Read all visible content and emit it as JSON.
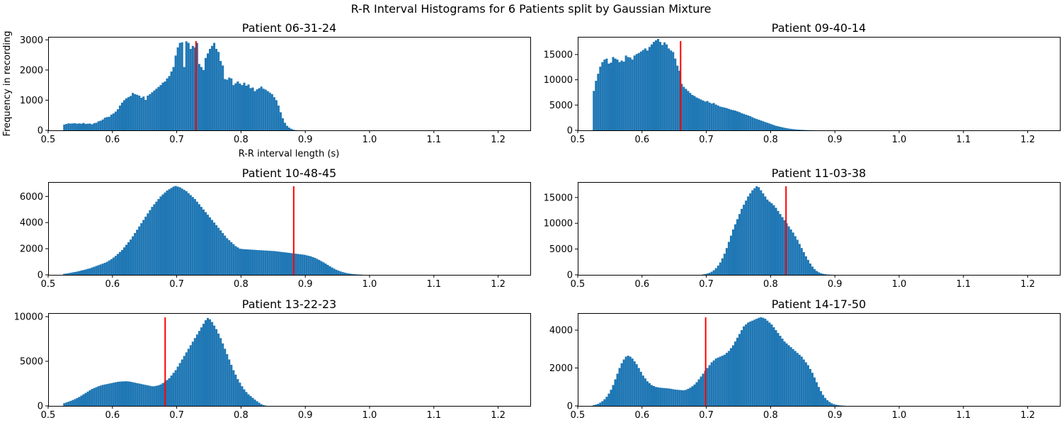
{
  "figure": {
    "suptitle": "R-R Interval Histograms for 6 Patients split by Gaussian Mixture",
    "ylabel": "Frequency in recording",
    "xlabel": "R-R interval length (s)"
  },
  "colors": {
    "bars": "#1f77b4",
    "split_line": "#ff0000"
  },
  "chart_data": [
    {
      "type": "bar",
      "title": "Patient 06-31-24",
      "xlabel": "R-R interval length (s)",
      "ylabel": "Frequency in recording",
      "xlim": [
        0.5,
        1.25
      ],
      "ylim": [
        0,
        3100
      ],
      "xticks": [
        0.5,
        0.6,
        0.7,
        0.8,
        0.9,
        1.0,
        1.1,
        1.2
      ],
      "yticks": [
        0,
        1000,
        2000,
        3000
      ],
      "split": 0.73,
      "bin_start": 0.5234,
      "bin_width": 0.003333,
      "values": [
        190,
        210,
        230,
        225,
        230,
        235,
        220,
        230,
        220,
        245,
        215,
        220,
        225,
        200,
        240,
        250,
        300,
        320,
        360,
        420,
        440,
        450,
        520,
        560,
        620,
        700,
        820,
        920,
        1000,
        1060,
        1100,
        1140,
        1240,
        1200,
        1180,
        1150,
        1080,
        1120,
        1010,
        1150,
        1200,
        1260,
        1320,
        1380,
        1440,
        1500,
        1580,
        1620,
        1720,
        1800,
        1950,
        2100,
        2480,
        2750,
        2900,
        2920,
        2100,
        2950,
        2900,
        2700,
        2800,
        2750,
        2900,
        2200,
        2100,
        2000,
        2400,
        2550,
        2700,
        2800,
        2900,
        2700,
        2600,
        2300,
        2150,
        1700,
        1680,
        1750,
        1720,
        1500,
        1560,
        1620,
        1550,
        1500,
        1580,
        1480,
        1520,
        1400,
        1420,
        1300,
        1360,
        1400,
        1450,
        1380,
        1350,
        1300,
        1250,
        1200,
        1100,
        1000,
        820,
        600,
        400,
        250,
        150,
        90,
        50,
        20,
        8
      ]
    },
    {
      "type": "bar",
      "title": "Patient 09-40-14",
      "xlim": [
        0.5,
        1.25
      ],
      "ylim": [
        0,
        18500
      ],
      "xticks": [
        0.5,
        0.6,
        0.7,
        0.8,
        0.9,
        1.0,
        1.1,
        1.2
      ],
      "yticks": [
        0,
        5000,
        10000,
        15000
      ],
      "split": 0.66,
      "bin_start": 0.5234,
      "bin_width": 0.003333,
      "values": [
        7800,
        9800,
        11200,
        12600,
        13500,
        14000,
        14200,
        13200,
        13400,
        14500,
        14200,
        14000,
        13500,
        13800,
        13600,
        14800,
        14500,
        14400,
        14000,
        14800,
        15100,
        15300,
        15600,
        15900,
        16200,
        15800,
        16500,
        17000,
        17500,
        17800,
        18100,
        17500,
        16900,
        17400,
        17000,
        16200,
        15800,
        15500,
        14200,
        12800,
        11800,
        9200,
        8600,
        8200,
        7800,
        7400,
        7000,
        6800,
        6500,
        6300,
        6100,
        5900,
        5700,
        5800,
        5500,
        5300,
        5400,
        5100,
        4900,
        4700,
        4600,
        4500,
        4400,
        4250,
        4100,
        4000,
        3900,
        3750,
        3600,
        3400,
        3250,
        3100,
        2950,
        2800,
        2600,
        2400,
        2250,
        2100,
        1950,
        1800,
        1650,
        1500,
        1350,
        1200,
        1050,
        900,
        800,
        700,
        600,
        500,
        420,
        350,
        290,
        240,
        200,
        160,
        130,
        100,
        80,
        60,
        45,
        30,
        20,
        12,
        8
      ]
    },
    {
      "type": "bar",
      "title": "Patient 10-48-45",
      "xlim": [
        0.5,
        1.25
      ],
      "ylim": [
        0,
        7100
      ],
      "xticks": [
        0.5,
        0.6,
        0.7,
        0.8,
        0.9,
        1.0,
        1.1,
        1.2
      ],
      "yticks": [
        0,
        2000,
        4000,
        6000
      ],
      "split": 0.882,
      "bin_start": 0.5234,
      "bin_width": 0.003333,
      "values": [
        80,
        100,
        130,
        160,
        190,
        220,
        250,
        290,
        330,
        370,
        410,
        460,
        500,
        560,
        620,
        680,
        740,
        800,
        860,
        920,
        1000,
        1100,
        1200,
        1320,
        1450,
        1600,
        1750,
        1900,
        2100,
        2300,
        2500,
        2700,
        2950,
        3200,
        3450,
        3700,
        3950,
        4200,
        4450,
        4700,
        4950,
        5200,
        5400,
        5600,
        5800,
        6000,
        6150,
        6300,
        6450,
        6550,
        6650,
        6750,
        6800,
        6750,
        6700,
        6600,
        6500,
        6400,
        6250,
        6100,
        5950,
        5800,
        5600,
        5400,
        5200,
        5000,
        4800,
        4600,
        4400,
        4200,
        4000,
        3800,
        3600,
        3400,
        3200,
        3000,
        2800,
        2650,
        2500,
        2350,
        2200,
        2100,
        2000,
        1980,
        1960,
        1950,
        1940,
        1930,
        1920,
        1910,
        1900,
        1890,
        1880,
        1870,
        1860,
        1850,
        1840,
        1830,
        1820,
        1800,
        1780,
        1760,
        1740,
        1720,
        1700,
        1680,
        1660,
        1640,
        1620,
        1600,
        1580,
        1560,
        1540,
        1500,
        1460,
        1420,
        1360,
        1300,
        1220,
        1140,
        1050,
        960,
        860,
        760,
        660,
        560,
        470,
        390,
        320,
        260,
        210,
        170,
        130,
        100,
        75,
        55,
        40,
        28,
        18,
        10
      ]
    },
    {
      "type": "bar",
      "title": "Patient 11-03-38",
      "xlim": [
        0.5,
        1.25
      ],
      "ylim": [
        0,
        18000
      ],
      "xticks": [
        0.5,
        0.6,
        0.7,
        0.8,
        0.9,
        1.0,
        1.1,
        1.2
      ],
      "yticks": [
        0,
        5000,
        10000,
        15000
      ],
      "split": 0.824,
      "bin_start": 0.6934,
      "bin_width": 0.003333,
      "values": [
        80,
        150,
        260,
        400,
        600,
        900,
        1300,
        1800,
        2400,
        3200,
        4100,
        5200,
        6400,
        7600,
        8800,
        9800,
        10800,
        11800,
        12800,
        13600,
        14400,
        15200,
        15800,
        16400,
        16800,
        17200,
        17000,
        16400,
        15800,
        15200,
        14600,
        14200,
        13900,
        13500,
        13000,
        12400,
        11800,
        11200,
        10600,
        10000,
        9400,
        8800,
        8200,
        7500,
        6800,
        6000,
        5200,
        4400,
        3600,
        2900,
        2200,
        1600,
        1100,
        750,
        500,
        320,
        200,
        120,
        70,
        40,
        20
      ]
    },
    {
      "type": "bar",
      "title": "Patient 13-22-23",
      "xlim": [
        0.5,
        1.25
      ],
      "ylim": [
        0,
        10400
      ],
      "xticks": [
        0.5,
        0.6,
        0.7,
        0.8,
        0.9,
        1.0,
        1.1,
        1.2
      ],
      "yticks": [
        0,
        5000,
        10000
      ],
      "split": 0.682,
      "bin_start": 0.5234,
      "bin_width": 0.003333,
      "values": [
        300,
        380,
        470,
        560,
        660,
        760,
        880,
        1000,
        1150,
        1300,
        1450,
        1600,
        1750,
        1900,
        2000,
        2100,
        2200,
        2280,
        2350,
        2400,
        2450,
        2500,
        2550,
        2600,
        2650,
        2700,
        2720,
        2740,
        2750,
        2760,
        2740,
        2700,
        2650,
        2600,
        2550,
        2500,
        2450,
        2400,
        2350,
        2300,
        2250,
        2200,
        2200,
        2250,
        2300,
        2400,
        2550,
        2700,
        2900,
        3100,
        3400,
        3700,
        4000,
        4400,
        4800,
        5200,
        5600,
        6000,
        6400,
        6800,
        7200,
        7600,
        8000,
        8400,
        8800,
        9200,
        9600,
        9850,
        9700,
        9400,
        9000,
        8600,
        8100,
        7600,
        7000,
        6400,
        5800,
        5200,
        4600,
        4000,
        3500,
        3000,
        2600,
        2200,
        1850,
        1550,
        1300,
        1100,
        900,
        700,
        520,
        350,
        200,
        90,
        30
      ]
    },
    {
      "type": "bar",
      "title": "Patient 14-17-50",
      "xlim": [
        0.5,
        1.25
      ],
      "ylim": [
        0,
        4900
      ],
      "xticks": [
        0.5,
        0.6,
        0.7,
        0.8,
        0.9,
        1.0,
        1.1,
        1.2
      ],
      "yticks": [
        0,
        2000,
        4000
      ],
      "split": 0.699,
      "bin_start": 0.5234,
      "bin_width": 0.003333,
      "values": [
        40,
        70,
        110,
        170,
        250,
        350,
        480,
        650,
        850,
        1100,
        1400,
        1700,
        2000,
        2250,
        2450,
        2600,
        2650,
        2600,
        2500,
        2350,
        2200,
        2000,
        1800,
        1600,
        1450,
        1300,
        1200,
        1100,
        1050,
        1000,
        980,
        960,
        950,
        940,
        930,
        920,
        900,
        880,
        860,
        850,
        840,
        830,
        820,
        850,
        900,
        960,
        1040,
        1130,
        1250,
        1400,
        1550,
        1700,
        1850,
        2000,
        2150,
        2300,
        2400,
        2500,
        2550,
        2600,
        2650,
        2700,
        2800,
        2900,
        3050,
        3200,
        3400,
        3600,
        3800,
        4000,
        4200,
        4300,
        4400,
        4450,
        4500,
        4550,
        4600,
        4650,
        4680,
        4650,
        4600,
        4500,
        4400,
        4300,
        4150,
        4000,
        3850,
        3700,
        3550,
        3400,
        3300,
        3200,
        3100,
        3000,
        2900,
        2800,
        2700,
        2600,
        2450,
        2300,
        2150,
        1950,
        1750,
        1500,
        1250,
        1000,
        780,
        580,
        420,
        300,
        210,
        140,
        90,
        60,
        40,
        25,
        15,
        8
      ]
    }
  ]
}
